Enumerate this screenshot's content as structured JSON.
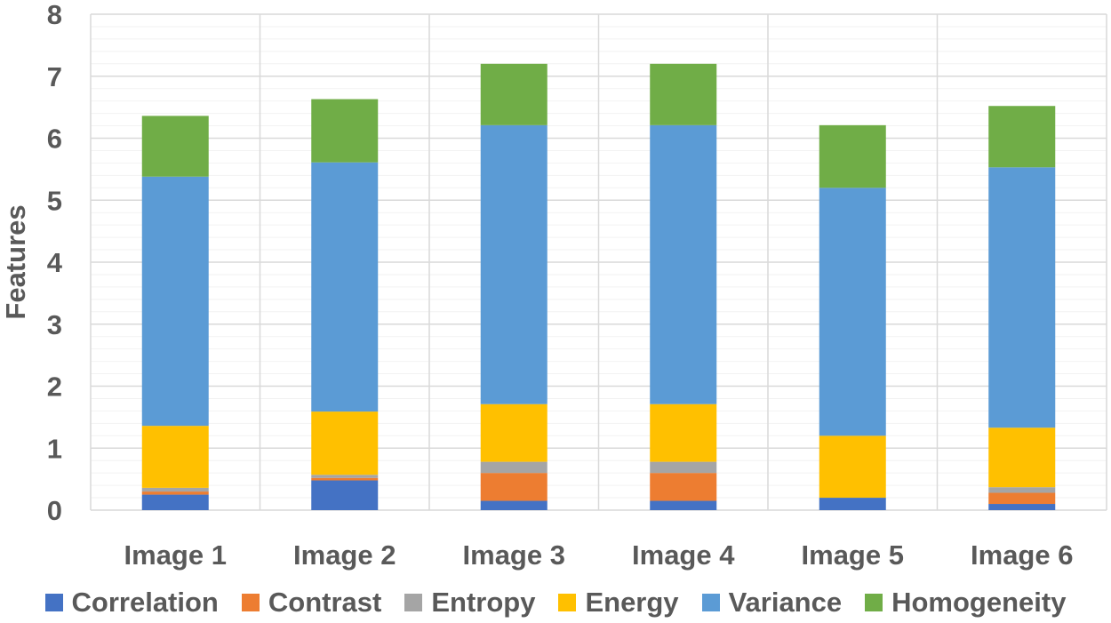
{
  "chart_data": {
    "type": "bar",
    "stacked": true,
    "title": "",
    "xlabel": "",
    "ylabel": "Features",
    "ylim": [
      0,
      8
    ],
    "yticks": [
      "0",
      "1",
      "2",
      "3",
      "4",
      "5",
      "6",
      "7",
      "8"
    ],
    "grid": true,
    "legend_position": "bottom",
    "categories": [
      "Image 1",
      "Image 2",
      "Image 3",
      "Image 4",
      "Image 5",
      "Image 6"
    ],
    "series": [
      {
        "name": "Correlation",
        "color": "#4472C4",
        "values": [
          0.25,
          0.48,
          0.15,
          0.15,
          0.2,
          0.1
        ]
      },
      {
        "name": "Contrast",
        "color": "#ED7D31",
        "values": [
          0.05,
          0.04,
          0.45,
          0.45,
          0.0,
          0.18
        ]
      },
      {
        "name": "Entropy",
        "color": "#A5A5A5",
        "values": [
          0.06,
          0.05,
          0.18,
          0.18,
          0.0,
          0.09
        ]
      },
      {
        "name": "Energy",
        "color": "#FFC000",
        "values": [
          1.0,
          1.02,
          0.93,
          0.93,
          1.0,
          0.96
        ]
      },
      {
        "name": "Variance",
        "color": "#5B9BD5",
        "values": [
          4.02,
          4.02,
          4.5,
          4.5,
          4.0,
          4.2
        ]
      },
      {
        "name": "Homogeneity",
        "color": "#70AD47",
        "values": [
          0.98,
          1.02,
          0.99,
          0.99,
          1.01,
          0.99
        ]
      }
    ]
  }
}
